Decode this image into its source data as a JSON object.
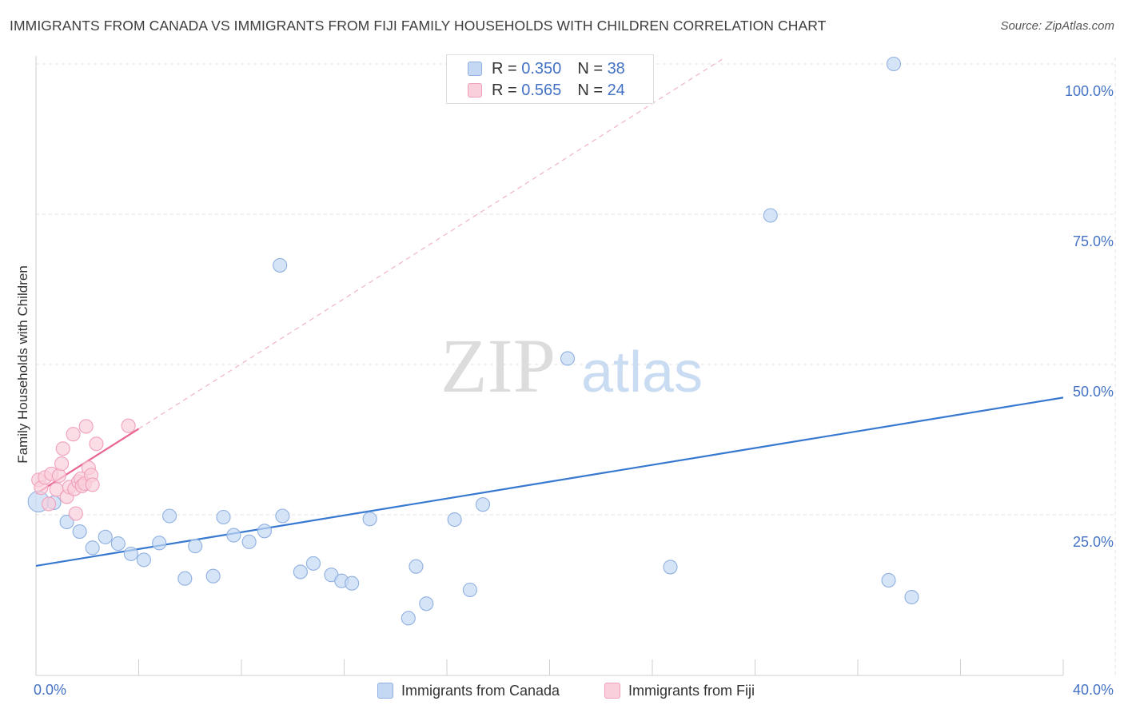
{
  "title": "IMMIGRANTS FROM CANADA VS IMMIGRANTS FROM FIJI FAMILY HOUSEHOLDS WITH CHILDREN CORRELATION CHART",
  "source": "Source: ZipAtlas.com",
  "watermark": {
    "zip": "ZIP",
    "atlas": "atlas"
  },
  "legend": {
    "r_label": "R =",
    "n_label": "N =",
    "canada": {
      "r": "0.350",
      "n": "38"
    },
    "fiji": {
      "r": "0.565",
      "n": "24"
    }
  },
  "colors": {
    "canada_fill": "#c5d8f3",
    "canada_stroke": "#8fb0e0",
    "canada_line": "#3778d0",
    "fiji_fill": "#f9cfdc",
    "fiji_stroke": "#f0a0bb",
    "fiji_line": "#e8668f",
    "tick_label": "#4472c4",
    "grid": "#e3e3e3"
  },
  "chart_data": {
    "type": "scatter",
    "title": "IMMIGRANTS FROM CANADA VS IMMIGRANTS FROM FIJI FAMILY HOUSEHOLDS WITH CHILDREN CORRELATION CHART",
    "xlabel": "",
    "ylabel": "Family Households with Children",
    "xlim": [
      0,
      40
    ],
    "ylim": [
      0,
      100
    ],
    "x_tick_labels": {
      "min": "0.0%",
      "max": "40.0%"
    },
    "y_ticks": [
      25,
      50,
      75,
      100
    ],
    "y_tick_labels": [
      "25.0%",
      "50.0%",
      "75.0%",
      "100.0%"
    ],
    "series": [
      {
        "name": "Immigrants from Canada",
        "r": 0.35,
        "n": 38,
        "points": [
          [
            0.1,
            27.2,
            3
          ],
          [
            0.7,
            27.0,
            1
          ],
          [
            1.2,
            23.8,
            1
          ],
          [
            1.7,
            22.2,
            1
          ],
          [
            2.2,
            19.5,
            1
          ],
          [
            2.7,
            21.3,
            1
          ],
          [
            3.2,
            20.2,
            1
          ],
          [
            3.7,
            18.5,
            1
          ],
          [
            4.2,
            17.5,
            1
          ],
          [
            4.8,
            20.3,
            1
          ],
          [
            5.2,
            24.8,
            1
          ],
          [
            5.8,
            14.4,
            1
          ],
          [
            6.2,
            19.8,
            1
          ],
          [
            6.9,
            14.8,
            1
          ],
          [
            7.3,
            24.6,
            1
          ],
          [
            7.7,
            21.6,
            1
          ],
          [
            8.3,
            20.5,
            1
          ],
          [
            8.9,
            22.3,
            1
          ],
          [
            9.5,
            66.5,
            1
          ],
          [
            9.6,
            24.8,
            1
          ],
          [
            10.3,
            15.5,
            1
          ],
          [
            10.8,
            16.9,
            1
          ],
          [
            11.5,
            15.0,
            1
          ],
          [
            11.9,
            14.0,
            1
          ],
          [
            12.3,
            13.6,
            1
          ],
          [
            13.0,
            24.3,
            1
          ],
          [
            14.5,
            7.8,
            1
          ],
          [
            14.8,
            16.4,
            1
          ],
          [
            15.2,
            10.2,
            1
          ],
          [
            16.3,
            24.2,
            1
          ],
          [
            16.9,
            12.5,
            1
          ],
          [
            17.4,
            26.7,
            1
          ],
          [
            20.7,
            51.0,
            1
          ],
          [
            24.7,
            16.3,
            1
          ],
          [
            28.6,
            74.8,
            1
          ],
          [
            33.2,
            14.1,
            1
          ],
          [
            33.4,
            100.0,
            1
          ],
          [
            34.1,
            11.3,
            1
          ]
        ],
        "trend": {
          "x": [
            0,
            40
          ],
          "y": [
            16.5,
            44.5
          ]
        }
      },
      {
        "name": "Immigrants from Fiji",
        "r": 0.565,
        "n": 24,
        "points": [
          [
            0.1,
            30.8,
            1
          ],
          [
            0.2,
            29.5,
            1
          ],
          [
            0.35,
            31.2,
            1
          ],
          [
            0.5,
            26.8,
            1
          ],
          [
            0.6,
            31.8,
            1
          ],
          [
            0.8,
            29.2,
            1
          ],
          [
            0.9,
            31.5,
            1
          ],
          [
            1.0,
            33.5,
            1
          ],
          [
            1.05,
            36.0,
            1
          ],
          [
            1.2,
            28.0,
            1
          ],
          [
            1.3,
            29.6,
            1
          ],
          [
            1.45,
            38.4,
            1
          ],
          [
            1.5,
            29.3,
            1
          ],
          [
            1.55,
            25.2,
            1
          ],
          [
            1.65,
            30.5,
            1
          ],
          [
            1.75,
            31.0,
            1
          ],
          [
            1.8,
            29.8,
            1
          ],
          [
            1.9,
            30.2,
            1
          ],
          [
            1.95,
            39.7,
            1
          ],
          [
            2.05,
            32.8,
            1
          ],
          [
            2.15,
            31.6,
            1
          ],
          [
            2.2,
            30.0,
            1
          ],
          [
            2.35,
            36.8,
            1
          ],
          [
            3.6,
            39.8,
            1
          ]
        ],
        "trend": {
          "x": [
            0,
            4.0
          ],
          "y": [
            28.5,
            39.3
          ]
        },
        "trend_extension": {
          "x": [
            4.0,
            26.8
          ],
          "y": [
            39.3,
            101.0
          ]
        }
      }
    ]
  }
}
